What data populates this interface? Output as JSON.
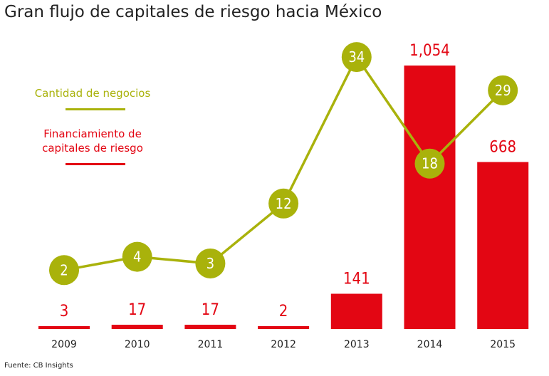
{
  "title": "Gran flujo de capitales de riesgo hacia México",
  "source": "Fuente: CB Insights",
  "legend": {
    "deals_label": "Cantidad de negocios",
    "funding_label_line1": "Financiamiento de",
    "funding_label_line2": "capitales de riesgo"
  },
  "colors": {
    "funding": "#e30613",
    "deals": "#a9b20b"
  },
  "chart_data": {
    "type": "bar",
    "categories": [
      "2009",
      "2010",
      "2011",
      "2012",
      "2013",
      "2014",
      "2015"
    ],
    "series": [
      {
        "name": "Financiamiento de capitales de riesgo",
        "type": "bar",
        "values": [
          3,
          17,
          17,
          2,
          141,
          1054,
          668
        ],
        "labels": [
          "3",
          "17",
          "17",
          "2",
          "141",
          "1,054",
          "668"
        ]
      },
      {
        "name": "Cantidad de negocios",
        "type": "line",
        "values": [
          2,
          4,
          3,
          12,
          34,
          18,
          29
        ],
        "labels": [
          "2",
          "4",
          "3",
          "12",
          "34",
          "18",
          "29"
        ]
      }
    ],
    "title": "Gran flujo de capitales de riesgo hacia México",
    "xlabel": "",
    "ylabel": "",
    "grid": false,
    "legend_position": "left"
  }
}
